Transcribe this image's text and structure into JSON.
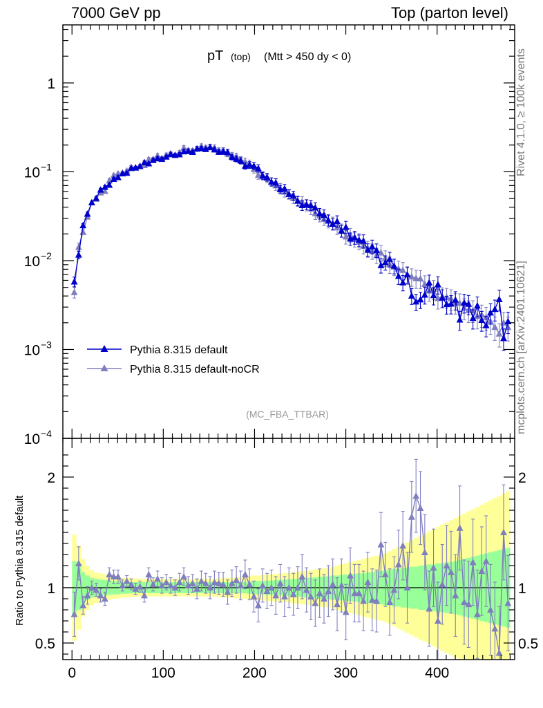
{
  "header": {
    "left": "7000 GeV pp",
    "right": "Top (parton level)"
  },
  "side_labels": {
    "rivet": "Rivet 4.1.0, ≥ 100k events",
    "mcplots": "mcplots.cern.ch [arXiv:2401.10621]"
  },
  "chart_data": {
    "type": "line",
    "title_main": "pT",
    "title_sub1": "(top)",
    "title_sub2": "(Mtt > 450 dy < 0)",
    "watermark": "(MC_FBA_TTBAR)",
    "xlabel": "",
    "ylabel_main": "",
    "ylabel_ratio": "Ratio to Pythia 8.315 default",
    "xlim": [
      -10,
      485
    ],
    "ylim_main": [
      0.0001,
      4.5
    ],
    "ylim_ratio": [
      0.35,
      2.35
    ],
    "x_ticks": [
      0,
      100,
      200,
      300,
      400
    ],
    "x_tick_labels": [
      "0",
      "100",
      "200",
      "300",
      "400"
    ],
    "y_ticks_main": [
      1,
      0.1,
      0.01,
      0.001,
      0.0001
    ],
    "y_tick_labels_main": [
      {
        "mant": "1",
        "exp": ""
      },
      {
        "mant": "10",
        "exp": "−1"
      },
      {
        "mant": "10",
        "exp": "−2"
      },
      {
        "mant": "10",
        "exp": "−3"
      },
      {
        "mant": "10",
        "exp": "−4"
      }
    ],
    "y_ticks_ratio": [
      0.5,
      1,
      2
    ],
    "y_tick_labels_ratio": [
      "0.5",
      "1",
      "2"
    ],
    "legend": [
      "Pythia 8.315 default",
      "Pythia 8.315 default-noCR"
    ],
    "colors": {
      "default": "#0000cc",
      "noCR": "#7f7fbf",
      "band_inner": "#99ff99",
      "band_outer": "#ffff99"
    },
    "knots_default": [
      [
        2.5,
        0.0058
      ],
      [
        7.5,
        0.012
      ],
      [
        12.5,
        0.026
      ],
      [
        17.5,
        0.036
      ],
      [
        22.5,
        0.045
      ],
      [
        30,
        0.058
      ],
      [
        40,
        0.073
      ],
      [
        50,
        0.087
      ],
      [
        60,
        0.1
      ],
      [
        70,
        0.112
      ],
      [
        80,
        0.125
      ],
      [
        90,
        0.135
      ],
      [
        100,
        0.145
      ],
      [
        110,
        0.153
      ],
      [
        120,
        0.162
      ],
      [
        130,
        0.172
      ],
      [
        140,
        0.182
      ],
      [
        145,
        0.186
      ],
      [
        150,
        0.184
      ],
      [
        160,
        0.172
      ],
      [
        170,
        0.158
      ],
      [
        180,
        0.14
      ],
      [
        190,
        0.122
      ],
      [
        200,
        0.107
      ],
      [
        210,
        0.09
      ],
      [
        220,
        0.076
      ],
      [
        230,
        0.064
      ],
      [
        240,
        0.054
      ],
      [
        250,
        0.046
      ],
      [
        260,
        0.04
      ],
      [
        270,
        0.034
      ],
      [
        280,
        0.029
      ],
      [
        290,
        0.025
      ],
      [
        300,
        0.021
      ],
      [
        310,
        0.0175
      ],
      [
        320,
        0.015
      ],
      [
        330,
        0.0128
      ],
      [
        340,
        0.0108
      ],
      [
        350,
        0.009
      ],
      [
        360,
        0.0076
      ],
      [
        370,
        0.0064
      ],
      [
        380,
        0.0055
      ],
      [
        390,
        0.0048
      ],
      [
        400,
        0.0042
      ],
      [
        410,
        0.0037
      ],
      [
        420,
        0.0033
      ],
      [
        430,
        0.0029
      ],
      [
        440,
        0.0026
      ],
      [
        450,
        0.0023
      ],
      [
        460,
        0.0021
      ],
      [
        470,
        0.0019
      ],
      [
        477.5,
        0.0018
      ]
    ],
    "ratio_noCR": [
      0.76,
      1.22,
      0.84,
      0.93,
      1.0,
      0.98,
      0.93,
      0.9,
      1.12,
      1.1,
      1.1,
      1.02,
      1.06,
      1.03,
      0.99,
      1.01,
      0.93,
      1.12,
      1.03,
      1.08,
      1.02,
      1.05,
      1.02,
      1.0,
      1.05,
      1.1,
      1.02,
      1.04,
      0.99,
      1.06,
      1.04,
      1.0,
      1.05,
      1.04,
      1.03,
      0.96,
      1.04,
      1.07,
      1.02,
      1.12,
      1.03,
      0.92,
      0.84,
      1.02,
      0.97,
      1.0,
      0.93,
      1.04,
      0.92,
      1.0,
      0.94,
      1.0,
      1.1,
      0.98,
      0.92,
      0.86,
      0.95,
      0.9,
      0.97,
      1.03,
      0.85,
      1.02,
      0.78,
      1.11,
      0.95,
      0.95,
      0.88,
      1.05,
      0.89,
      0.88,
      1.39,
      1.12,
      0.87,
      0.98,
      1.21,
      1.38,
      1.0,
      1.64,
      1.83,
      1.72,
      1.32,
      0.81,
      1.18,
      0.7,
      1.03,
      1.2,
      1.14,
      0.93,
      1.54,
      0.87,
      0.85,
      1.23,
      0.76,
      1.15,
      1.24,
      0.8,
      0.63,
      0.41,
      1.5,
      0.86
    ],
    "ratio_errors": [
      0.2,
      0.15,
      0.08,
      0.08,
      0.06,
      0.06,
      0.06,
      0.06,
      0.06,
      0.06,
      0.06,
      0.05,
      0.05,
      0.05,
      0.05,
      0.05,
      0.06,
      0.06,
      0.06,
      0.07,
      0.07,
      0.07,
      0.07,
      0.07,
      0.08,
      0.08,
      0.08,
      0.08,
      0.09,
      0.09,
      0.09,
      0.1,
      0.1,
      0.1,
      0.11,
      0.11,
      0.12,
      0.12,
      0.13,
      0.13,
      0.14,
      0.14,
      0.15,
      0.15,
      0.16,
      0.16,
      0.17,
      0.17,
      0.18,
      0.18,
      0.19,
      0.19,
      0.2,
      0.2,
      0.21,
      0.21,
      0.22,
      0.22,
      0.23,
      0.23,
      0.24,
      0.24,
      0.25,
      0.25,
      0.26,
      0.26,
      0.27,
      0.27,
      0.28,
      0.28,
      0.29,
      0.29,
      0.3,
      0.3,
      0.31,
      0.31,
      0.32,
      0.32,
      0.33,
      0.33,
      0.34,
      0.34,
      0.35,
      0.35,
      0.36,
      0.36,
      0.37,
      0.37,
      0.38,
      0.38,
      0.39,
      0.39,
      0.4,
      0.4,
      0.41,
      0.41,
      0.42,
      0.42,
      0.43,
      0.43
    ],
    "wobble_default": [
      0.0,
      0.0,
      0.02,
      -0.03,
      0.04,
      -0.02,
      0.05,
      0.01,
      -0.04,
      0.03,
      -0.01,
      0.02,
      -0.03,
      0.04,
      0.0,
      -0.02,
      0.03,
      -0.04,
      0.01,
      0.02,
      -0.03,
      0.0,
      0.04,
      -0.01,
      -0.02,
      0.03,
      0.01,
      -0.04,
      0.02,
      0.0,
      -0.03,
      0.04,
      0.01,
      -0.02,
      0.03,
      0.06,
      -0.01,
      0.0,
      0.02,
      -0.05,
      0.04,
      0.08,
      0.1,
      -0.02,
      0.03,
      -0.01,
      0.05,
      -0.04,
      0.06,
      0.0,
      0.04,
      -0.02,
      -0.06,
      0.03,
      0.08,
      0.1,
      0.02,
      0.06,
      0.0,
      -0.03,
      0.12,
      -0.05,
      0.14,
      -0.08,
      0.04,
      0.05,
      0.1,
      -0.06,
      0.11,
      0.09,
      -0.2,
      -0.06,
      0.12,
      0.02,
      -0.15,
      -0.22,
      0.04,
      -0.35,
      -0.4,
      -0.32,
      -0.18,
      0.2,
      -0.08,
      0.3,
      -0.02,
      -0.12,
      -0.06,
      0.1,
      -0.3,
      0.16,
      0.18,
      -0.14,
      0.26,
      -0.08,
      -0.16,
      0.22,
      0.4,
      0.9,
      -0.28,
      0.15
    ],
    "band_inner_half": [
      0.24,
      0.2,
      0.14,
      0.11,
      0.09,
      0.08,
      0.075,
      0.07,
      0.065,
      0.06,
      0.06,
      0.055,
      0.055,
      0.05,
      0.05,
      0.05,
      0.05,
      0.05,
      0.05,
      0.05,
      0.05,
      0.05,
      0.05,
      0.05,
      0.05,
      0.05,
      0.05,
      0.05,
      0.05,
      0.05,
      0.05,
      0.05,
      0.05,
      0.05,
      0.05,
      0.05,
      0.05,
      0.05,
      0.05,
      0.05,
      0.055,
      0.06,
      0.06,
      0.06,
      0.065,
      0.065,
      0.07,
      0.07,
      0.075,
      0.075,
      0.08,
      0.08,
      0.085,
      0.09,
      0.09,
      0.095,
      0.1,
      0.1,
      0.105,
      0.11,
      0.11,
      0.115,
      0.12,
      0.12,
      0.125,
      0.13,
      0.13,
      0.14,
      0.14,
      0.15,
      0.15,
      0.16,
      0.16,
      0.17,
      0.17,
      0.18,
      0.18,
      0.19,
      0.19,
      0.2,
      0.2,
      0.21,
      0.21,
      0.22,
      0.22,
      0.23,
      0.23,
      0.24,
      0.25,
      0.26,
      0.27,
      0.28,
      0.29,
      0.3,
      0.31,
      0.32,
      0.33,
      0.34,
      0.35,
      0.36
    ],
    "band_outer_half": [
      0.48,
      0.38,
      0.26,
      0.2,
      0.16,
      0.14,
      0.13,
      0.12,
      0.11,
      0.1,
      0.1,
      0.09,
      0.09,
      0.085,
      0.085,
      0.08,
      0.08,
      0.08,
      0.08,
      0.08,
      0.08,
      0.08,
      0.08,
      0.08,
      0.08,
      0.08,
      0.08,
      0.08,
      0.08,
      0.08,
      0.08,
      0.08,
      0.08,
      0.085,
      0.085,
      0.09,
      0.09,
      0.095,
      0.1,
      0.1,
      0.105,
      0.11,
      0.11,
      0.115,
      0.12,
      0.12,
      0.125,
      0.13,
      0.13,
      0.135,
      0.14,
      0.145,
      0.15,
      0.155,
      0.16,
      0.165,
      0.17,
      0.175,
      0.18,
      0.19,
      0.2,
      0.21,
      0.22,
      0.23,
      0.24,
      0.25,
      0.26,
      0.27,
      0.28,
      0.29,
      0.3,
      0.31,
      0.33,
      0.35,
      0.37,
      0.39,
      0.41,
      0.43,
      0.45,
      0.47,
      0.49,
      0.51,
      0.53,
      0.55,
      0.57,
      0.59,
      0.61,
      0.63,
      0.65,
      0.67,
      0.69,
      0.71,
      0.73,
      0.75,
      0.77,
      0.79,
      0.81,
      0.83,
      0.85,
      0.87
    ]
  }
}
